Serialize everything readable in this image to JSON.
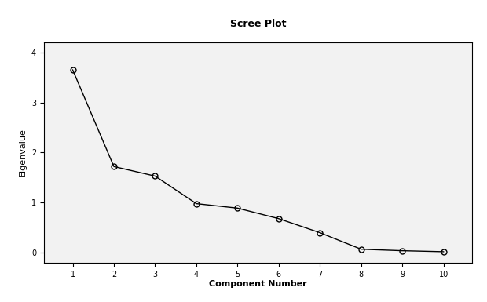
{
  "chart_data": {
    "type": "line",
    "title": "Scree Plot",
    "x_label": "Component Number",
    "y_label": "Eigenvalue",
    "x": [
      1,
      2,
      3,
      4,
      5,
      6,
      7,
      8,
      9,
      10
    ],
    "values": [
      3.65,
      1.72,
      1.53,
      0.98,
      0.89,
      0.68,
      0.4,
      0.07,
      0.04,
      0.02
    ],
    "color": "#000000",
    "marker": "circle",
    "line_style": "solid",
    "xlim": [
      0.3,
      10.7
    ],
    "xticks": [
      1,
      2,
      3,
      4,
      5,
      6,
      7,
      8,
      9,
      10
    ],
    "ylim": [
      -0.2,
      4.2
    ],
    "yticks": [
      0,
      1,
      2,
      3,
      4
    ],
    "grid": false
  }
}
